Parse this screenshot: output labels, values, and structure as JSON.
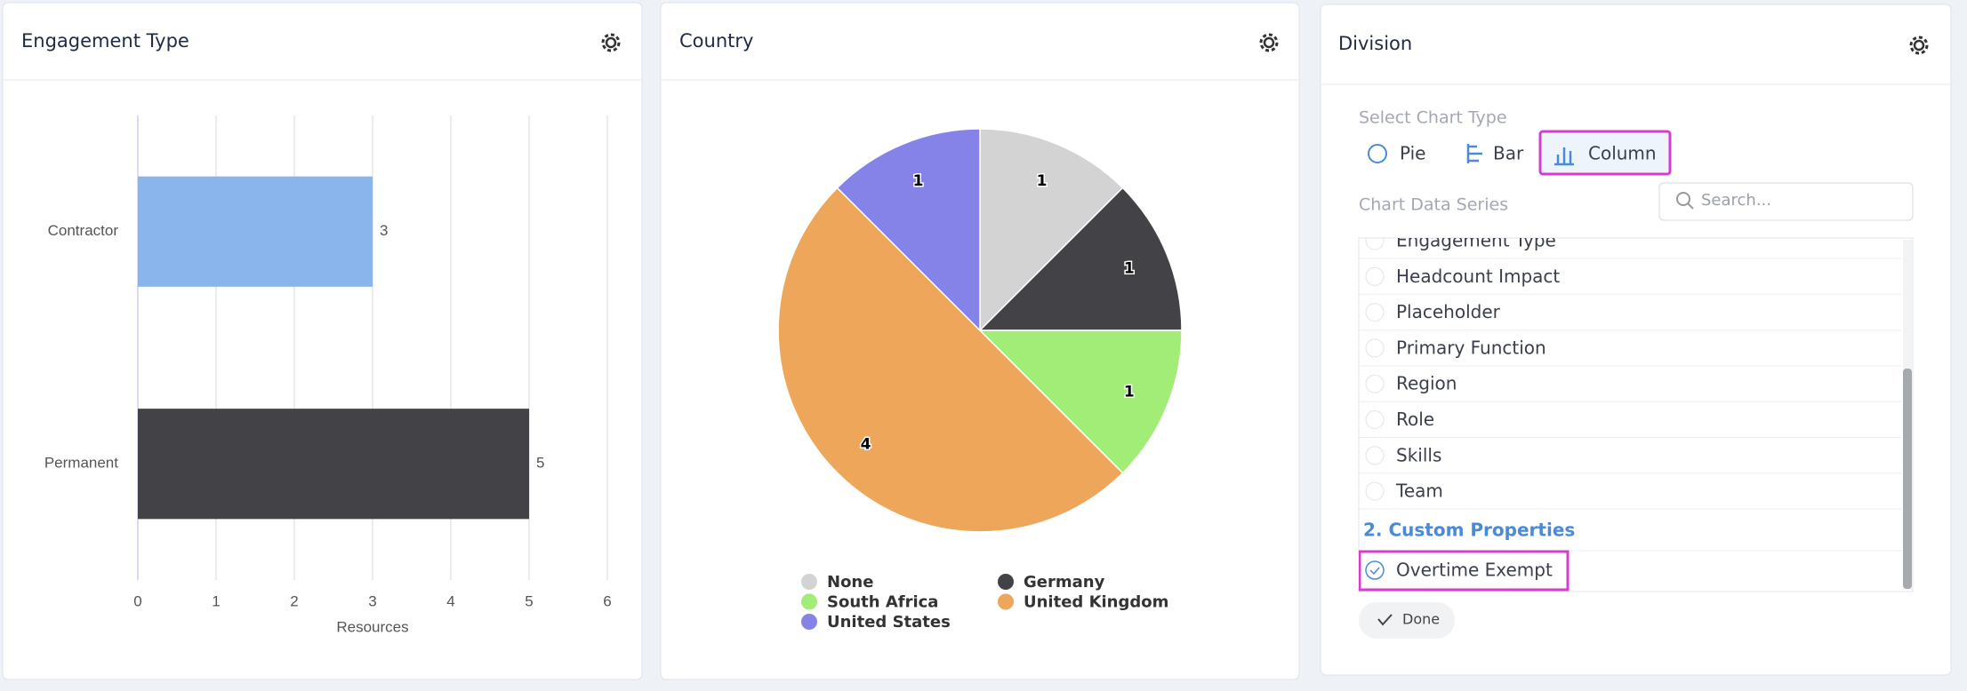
{
  "chart_data": [
    {
      "type": "bar",
      "orientation": "horizontal",
      "title": "Engagement Type",
      "categories": [
        "Contractor",
        "Permanent"
      ],
      "values": [
        3,
        5
      ],
      "colors": [
        "#8ab4ec",
        "#434347"
      ],
      "xlim": [
        0,
        6
      ],
      "xticks": [
        0,
        1,
        2,
        3,
        4,
        5,
        6
      ],
      "x_label": "Resources",
      "grid": true
    },
    {
      "type": "pie",
      "title": "Country",
      "categories": [
        "None",
        "Germany",
        "South Africa",
        "United Kingdom",
        "United States"
      ],
      "values": [
        1,
        1,
        1,
        4,
        1
      ],
      "colors": [
        "#d3d3d3",
        "#434347",
        "#a2ec78",
        "#eda65a",
        "#8583e8"
      ],
      "legend": "bottom"
    }
  ],
  "division_panel": {
    "title": "Division",
    "select_chart_type_label": "Select Chart Type",
    "chart_types": [
      "Pie",
      "Bar",
      "Column"
    ],
    "series_label": "Chart Data Series",
    "search_placeholder": "Search...",
    "series_items": [
      "Engagement Type",
      "Headcount Impact",
      "Placeholder",
      "Primary Function",
      "Region",
      "Role",
      "Skills",
      "Team"
    ],
    "custom_properties_heading": "2. Custom Properties",
    "custom_items": [
      "Overtime Exempt"
    ],
    "done_button": "Done"
  }
}
